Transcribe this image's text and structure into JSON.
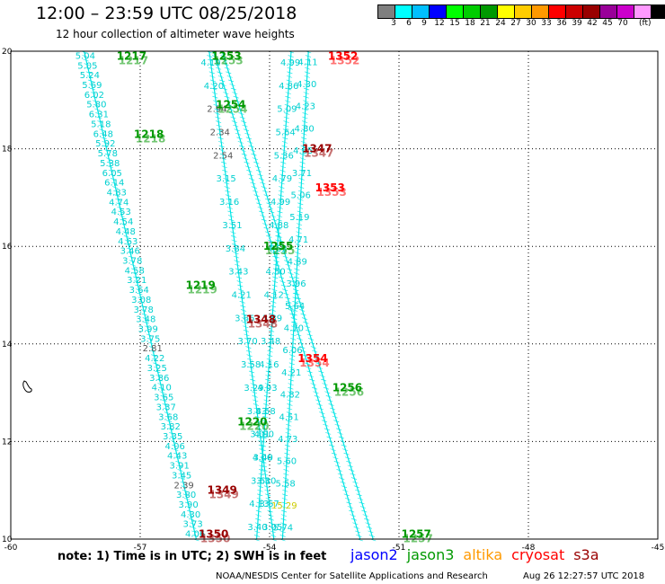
{
  "title": "12:00 – 23:59 UTC 08/25/2018",
  "subtitle": "12 hour collection of altimeter wave heights",
  "legend": {
    "colors": [
      "#7f7f7f",
      "#00ffff",
      "#00bfff",
      "#0000ff",
      "#00ff00",
      "#00cc00",
      "#009900",
      "#ffff00",
      "#ffcc00",
      "#ff9900",
      "#ff0000",
      "#cc0000",
      "#990000",
      "#990099",
      "#cc00cc",
      "#ff99ff",
      "#000000"
    ],
    "labels": [
      "3",
      "6",
      "9",
      "12",
      "15",
      "18",
      "21",
      "24",
      "27",
      "30",
      "33",
      "36",
      "39",
      "42",
      "45",
      "70"
    ],
    "unit": "(ft)"
  },
  "axes": {
    "lon_ticks": [
      "-60",
      "-57",
      "-54",
      "-51",
      "-48",
      "-45"
    ],
    "lat_ticks": [
      "10",
      "12",
      "14",
      "16",
      "18",
      "20"
    ],
    "lon_range": [
      -60,
      -45
    ],
    "lat_range": [
      10,
      20
    ]
  },
  "passes": [
    {
      "label": "1217",
      "lon": -57.2,
      "lat": 19.9,
      "color": "#009900"
    },
    {
      "label": "1218",
      "lon": -56.8,
      "lat": 18.3,
      "color": "#009900"
    },
    {
      "label": "1219",
      "lon": -55.6,
      "lat": 15.2,
      "color": "#009900"
    },
    {
      "label": "1220",
      "lon": -54.4,
      "lat": 12.4,
      "color": "#009900"
    },
    {
      "label": "1253",
      "lon": -55.0,
      "lat": 19.9,
      "color": "#009900"
    },
    {
      "label": "1254",
      "lon": -54.9,
      "lat": 18.9,
      "color": "#009900"
    },
    {
      "label": "1255",
      "lon": -53.8,
      "lat": 16.0,
      "color": "#009900"
    },
    {
      "label": "1256",
      "lon": -52.2,
      "lat": 13.1,
      "color": "#009900"
    },
    {
      "label": "1257",
      "lon": -50.6,
      "lat": 10.1,
      "color": "#009900"
    },
    {
      "label": "1347",
      "lon": -52.9,
      "lat": 18.0,
      "color": "#990000"
    },
    {
      "label": "1348",
      "lon": -54.2,
      "lat": 14.5,
      "color": "#990000"
    },
    {
      "label": "1349",
      "lon": -55.1,
      "lat": 11.0,
      "color": "#990000"
    },
    {
      "label": "1350",
      "lon": -55.3,
      "lat": 10.1,
      "color": "#990000"
    },
    {
      "label": "1352",
      "lon": -52.3,
      "lat": 19.9,
      "color": "#ff0000"
    },
    {
      "label": "1353",
      "lon": -52.6,
      "lat": 17.2,
      "color": "#ff0000"
    },
    {
      "label": "1354",
      "lon": -53.0,
      "lat": 13.7,
      "color": "#ff0000"
    }
  ],
  "tracks": [
    {
      "name": "track-a",
      "start": [
        -58.3,
        20.0
      ],
      "end": [
        -55.7,
        10.0
      ],
      "values": [
        "5.04",
        "5.05",
        "5.24",
        "5.69",
        "6.02",
        "5.80",
        "6.31",
        "5.18",
        "6.48",
        "5.92",
        "5.78",
        "5.38",
        "6.05",
        "6.14",
        "4.83",
        "4.74",
        "4.53",
        "4.54",
        "4.48",
        "4.63",
        "3.46",
        "3.78",
        "4.58",
        "3.21",
        "3.64",
        "3.08",
        "3.78",
        "3.48",
        "3.99",
        "3.75",
        "2.81",
        "4.22",
        "3.25",
        "3.86",
        "4.10",
        "3.65",
        "3.37",
        "3.68",
        "3.82",
        "3.35",
        "4.06",
        "4.43",
        "3.91",
        "3.45",
        "2.39",
        "3.80",
        "3.90",
        "4.30",
        "3.73",
        "4.06"
      ],
      "gray": [
        "2.81",
        "2.39"
      ]
    },
    {
      "name": "track-b",
      "start": [
        -55.4,
        20.0
      ],
      "end": [
        -53.9,
        10.0
      ],
      "values": [
        "4.19",
        "4.20",
        "2.94",
        "2.34",
        "2.54",
        "3.15",
        "3.16",
        "3.51",
        "3.84",
        "3.43",
        "4.21",
        "3.66",
        "3.70",
        "3.58",
        "3.29",
        "3.83",
        "3.01",
        "3.40",
        "3.30",
        "3.67",
        "3.05"
      ],
      "gray": [
        "2.94",
        "2.34",
        "2.54"
      ]
    },
    {
      "name": "track-c",
      "start": [
        -55.3,
        20.0
      ],
      "end": [
        -51.9,
        10.0
      ],
      "values": [],
      "gray": []
    },
    {
      "name": "track-d",
      "start": [
        -55.1,
        20.0
      ],
      "end": [
        -51.6,
        10.0
      ],
      "values": [],
      "gray": []
    },
    {
      "name": "track-e",
      "start": [
        -53.5,
        20.0
      ],
      "end": [
        -54.3,
        10.0
      ],
      "values": [
        "4.99",
        "4.86",
        "5.09",
        "5.64",
        "5.36",
        "4.79",
        "4.99",
        "4.88",
        "4.63",
        "4.50",
        "4.12",
        "3.89",
        "3.48",
        "4.16",
        "4.93",
        "4.58",
        "4.90",
        "4.06",
        "3.61",
        "4.13",
        "3.40"
      ],
      "gray": []
    },
    {
      "name": "track-f",
      "start": [
        -53.1,
        20.0
      ],
      "end": [
        -53.7,
        10.0
      ],
      "values": [
        "4.11",
        "4.30",
        "4.23",
        "4.80",
        "4.65",
        "3.71",
        "5.06",
        "5.19",
        "4.71",
        "4.89",
        "3.96",
        "5.64",
        "4.70",
        "6.06",
        "4.21",
        "4.82",
        "4.51",
        "4.73",
        "5.60",
        "5.58",
        "15.29",
        "5.74"
      ],
      "gray": [],
      "highlight": {
        "15.29": "#cccc00"
      }
    }
  ],
  "footer": {
    "note": "note: 1) Time is in UTC; 2) SWH is in feet",
    "missions": [
      {
        "name": "jason2",
        "color": "#0000ff"
      },
      {
        "name": "jason3",
        "color": "#009900"
      },
      {
        "name": "altika",
        "color": "#ff9900"
      },
      {
        "name": "cryosat",
        "color": "#ff0000"
      },
      {
        "name": "s3a",
        "color": "#990000"
      }
    ],
    "credit": "NOAA/NESDIS Center for Satellite Applications and Research",
    "timestamp": "Aug 26 12:27:57 UTC 2018"
  }
}
